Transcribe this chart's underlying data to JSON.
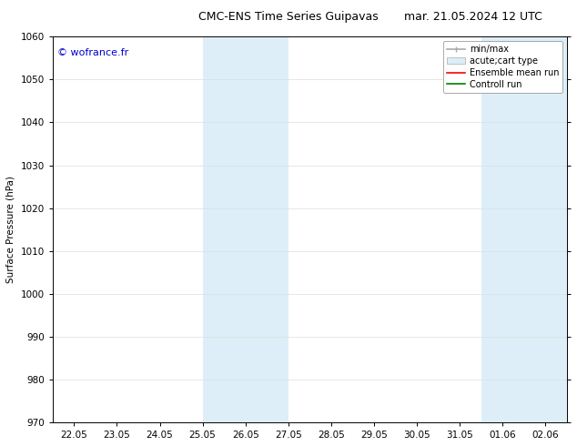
{
  "title_left": "CMC-ENS Time Series Guipavas",
  "title_right": "mar. 21.05.2024 12 UTC",
  "ylabel": "Surface Pressure (hPa)",
  "ylim": [
    970,
    1060
  ],
  "yticks": [
    970,
    980,
    990,
    1000,
    1010,
    1020,
    1030,
    1040,
    1050,
    1060
  ],
  "xtick_labels": [
    "22.05",
    "23.05",
    "24.05",
    "25.05",
    "26.05",
    "27.05",
    "28.05",
    "29.05",
    "30.05",
    "31.05",
    "01.06",
    "02.06"
  ],
  "xtick_positions": [
    0,
    1,
    2,
    3,
    4,
    5,
    6,
    7,
    8,
    9,
    10,
    11
  ],
  "xlim": [
    -0.5,
    11.5
  ],
  "shaded_regions": [
    {
      "x_start": 3.0,
      "x_end": 5.0,
      "color": "#ddeef8"
    },
    {
      "x_start": 9.5,
      "x_end": 11.5,
      "color": "#ddeef8"
    }
  ],
  "watermark_text": "© wofrance.fr",
  "watermark_color": "#0000cc",
  "watermark_fontsize": 8,
  "background_color": "#ffffff",
  "grid_color": "#dddddd",
  "title_fontsize": 9,
  "axis_fontsize": 7.5,
  "legend_fontsize": 7
}
